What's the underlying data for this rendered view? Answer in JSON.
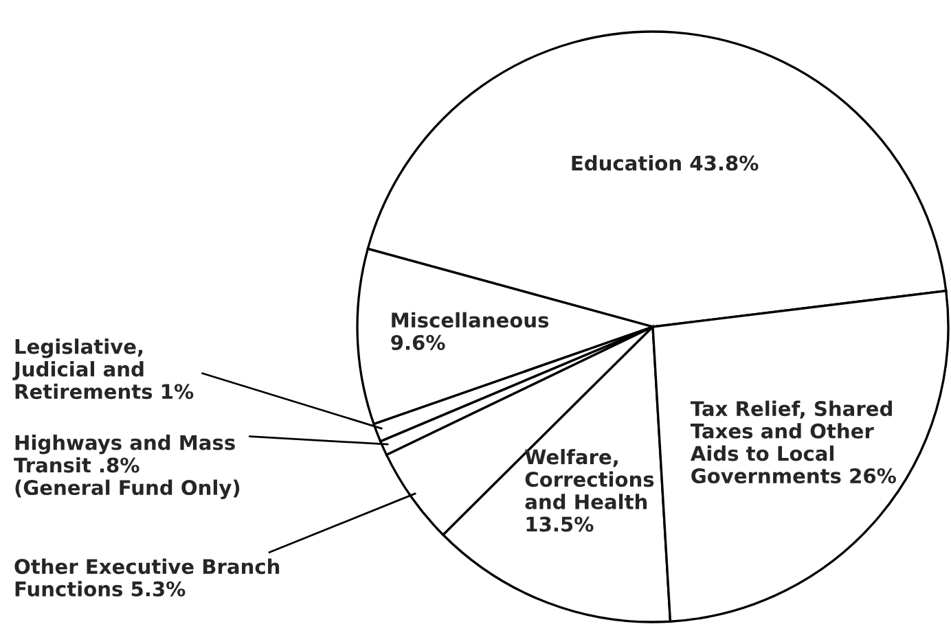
{
  "chart_data": {
    "type": "pie",
    "categories": [
      "Education 43.8%",
      "Miscellaneous\n9.6%",
      "Legislative,\nJudicial and\nRetirements 1%",
      "Highways and Mass\nTransit .8%\n(General Fund Only)",
      "Other Executive Branch\nFunctions 5.3%",
      "Welfare,\nCorrections\nand Health\n13.5%",
      "Tax Relief, Shared\nTaxes and Other\nAids to Local\nGovernments 26%"
    ],
    "values": [
      43.8,
      9.6,
      1,
      0.8,
      5.3,
      13.5,
      26
    ],
    "colors": [
      "#ffffff",
      "#ffffff",
      "#ffffff",
      "#ffffff",
      "#ffffff",
      "#ffffff",
      "#ffffff"
    ]
  }
}
